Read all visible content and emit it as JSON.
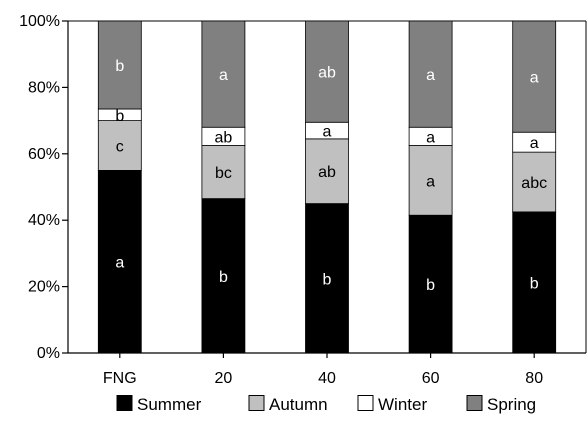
{
  "chart_data": {
    "type": "bar",
    "stacked": true,
    "categories": [
      "FNG",
      "20",
      "40",
      "60",
      "80"
    ],
    "series": [
      {
        "name": "Summer",
        "color": "#000000",
        "values": [
          55,
          46.5,
          45,
          41.5,
          42.5
        ],
        "labels": [
          "a",
          "b",
          "b",
          "b",
          "b"
        ]
      },
      {
        "name": "Autumn",
        "color": "#c0c0c0",
        "values": [
          15,
          16,
          19.5,
          21,
          18
        ],
        "labels": [
          "c",
          "bc",
          "ab",
          "a",
          "abc"
        ]
      },
      {
        "name": "Winter",
        "color": "#ffffff",
        "values": [
          3.5,
          5.5,
          5,
          5.5,
          6
        ],
        "labels": [
          "b",
          "ab",
          "a",
          "a",
          "a"
        ]
      },
      {
        "name": "Spring",
        "color": "#808080",
        "values": [
          26.5,
          32,
          30.5,
          32,
          33.5
        ],
        "labels": [
          "b",
          "a",
          "ab",
          "a",
          "a"
        ]
      }
    ],
    "y_ticks": [
      "0%",
      "20%",
      "40%",
      "60%",
      "80%",
      "100%"
    ],
    "ylim": [
      0,
      100
    ],
    "legend_position": "bottom",
    "grid": false
  }
}
